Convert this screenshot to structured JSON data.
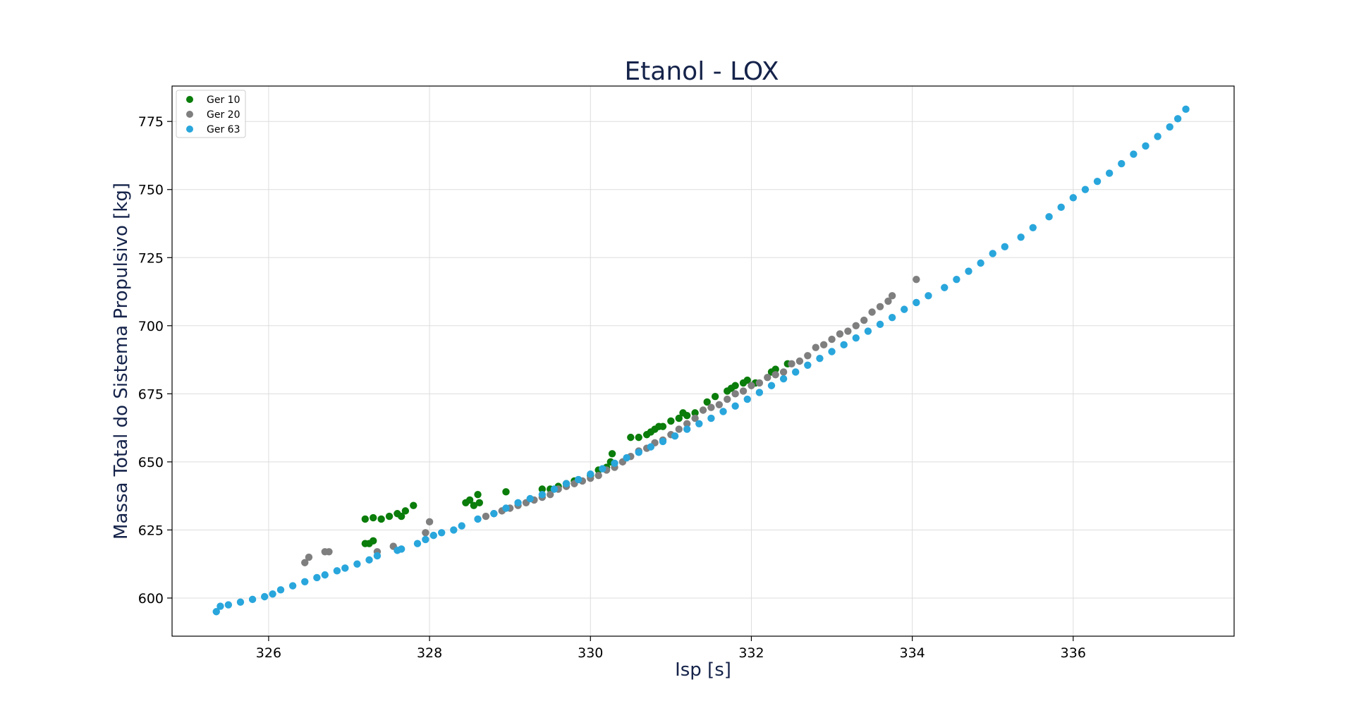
{
  "chart_data": {
    "type": "scatter",
    "title": "Etanol - LOX",
    "xlabel": "Isp [s]",
    "ylabel": "Massa Total do Sistema Propulsivo [kg]",
    "xlim": [
      324.8,
      338.0
    ],
    "ylim": [
      586,
      788
    ],
    "xticks": [
      326,
      328,
      330,
      332,
      334,
      336
    ],
    "yticks": [
      600,
      625,
      650,
      675,
      700,
      725,
      750,
      775
    ],
    "grid": true,
    "legend_position": "top-left",
    "series": [
      {
        "name": "Ger 10",
        "color": "#0a7d0a",
        "points": [
          [
            327.2,
            629.0
          ],
          [
            327.2,
            620.0
          ],
          [
            327.25,
            620.0
          ],
          [
            327.3,
            621.0
          ],
          [
            327.3,
            629.5
          ],
          [
            327.4,
            629.0
          ],
          [
            327.5,
            630.0
          ],
          [
            327.6,
            631.0
          ],
          [
            327.65,
            630.0
          ],
          [
            327.7,
            632.0
          ],
          [
            327.8,
            634.0
          ],
          [
            328.45,
            635.0
          ],
          [
            328.5,
            636.0
          ],
          [
            328.55,
            634.0
          ],
          [
            328.6,
            638.0
          ],
          [
            328.62,
            635.0
          ],
          [
            328.95,
            639.0
          ],
          [
            329.4,
            640.0
          ],
          [
            329.5,
            640.0
          ],
          [
            329.6,
            641.0
          ],
          [
            329.7,
            642.0
          ],
          [
            329.8,
            643.0
          ],
          [
            330.0,
            645.0
          ],
          [
            330.1,
            647.0
          ],
          [
            330.2,
            648.0
          ],
          [
            330.25,
            650.0
          ],
          [
            330.27,
            653.0
          ],
          [
            330.5,
            659.0
          ],
          [
            330.6,
            659.0
          ],
          [
            330.7,
            660.0
          ],
          [
            330.75,
            661.0
          ],
          [
            330.8,
            662.0
          ],
          [
            330.85,
            663.0
          ],
          [
            330.9,
            663.0
          ],
          [
            331.0,
            665.0
          ],
          [
            331.1,
            666.0
          ],
          [
            331.15,
            668.0
          ],
          [
            331.2,
            667.0
          ],
          [
            331.3,
            668.0
          ],
          [
            331.45,
            672.0
          ],
          [
            331.55,
            674.0
          ],
          [
            331.7,
            676.0
          ],
          [
            331.75,
            677.0
          ],
          [
            331.8,
            678.0
          ],
          [
            331.9,
            679.0
          ],
          [
            331.95,
            680.0
          ],
          [
            332.05,
            679.0
          ],
          [
            332.25,
            683.0
          ],
          [
            332.3,
            684.0
          ],
          [
            332.45,
            686.0
          ]
        ]
      },
      {
        "name": "Ger 20",
        "color": "#7f7f7f",
        "points": [
          [
            326.45,
            613.0
          ],
          [
            326.5,
            615.0
          ],
          [
            326.7,
            617.0
          ],
          [
            326.75,
            617.0
          ],
          [
            327.35,
            617.0
          ],
          [
            327.55,
            619.0
          ],
          [
            327.95,
            624.0
          ],
          [
            328.0,
            628.0
          ],
          [
            328.7,
            630.0
          ],
          [
            328.8,
            631.0
          ],
          [
            328.9,
            632.0
          ],
          [
            329.0,
            633.0
          ],
          [
            329.1,
            634.0
          ],
          [
            329.2,
            635.0
          ],
          [
            329.3,
            636.0
          ],
          [
            329.4,
            637.0
          ],
          [
            329.5,
            638.0
          ],
          [
            329.6,
            640.0
          ],
          [
            329.7,
            641.0
          ],
          [
            329.8,
            642.0
          ],
          [
            329.9,
            643.0
          ],
          [
            330.0,
            644.0
          ],
          [
            330.1,
            645.0
          ],
          [
            330.2,
            647.0
          ],
          [
            330.3,
            648.0
          ],
          [
            330.4,
            650.0
          ],
          [
            330.5,
            652.0
          ],
          [
            330.6,
            654.0
          ],
          [
            330.7,
            655.0
          ],
          [
            330.8,
            657.0
          ],
          [
            330.9,
            658.0
          ],
          [
            331.0,
            660.0
          ],
          [
            331.1,
            662.0
          ],
          [
            331.2,
            664.0
          ],
          [
            331.3,
            666.0
          ],
          [
            331.4,
            669.0
          ],
          [
            331.5,
            670.0
          ],
          [
            331.6,
            671.0
          ],
          [
            331.7,
            673.0
          ],
          [
            331.8,
            675.0
          ],
          [
            331.9,
            676.0
          ],
          [
            332.0,
            678.0
          ],
          [
            332.1,
            679.0
          ],
          [
            332.2,
            681.0
          ],
          [
            332.3,
            682.0
          ],
          [
            332.4,
            683.0
          ],
          [
            332.5,
            686.0
          ],
          [
            332.6,
            687.0
          ],
          [
            332.7,
            689.0
          ],
          [
            332.8,
            692.0
          ],
          [
            332.9,
            693.0
          ],
          [
            333.0,
            695.0
          ],
          [
            333.1,
            697.0
          ],
          [
            333.2,
            698.0
          ],
          [
            333.3,
            700.0
          ],
          [
            333.4,
            702.0
          ],
          [
            333.5,
            705.0
          ],
          [
            333.6,
            707.0
          ],
          [
            333.7,
            709.0
          ],
          [
            333.75,
            711.0
          ],
          [
            334.05,
            717.0
          ]
        ]
      },
      {
        "name": "Ger 63",
        "color": "#29a6dc",
        "points": [
          [
            325.35,
            595.0
          ],
          [
            325.4,
            597.0
          ],
          [
            325.5,
            597.5
          ],
          [
            325.65,
            598.5
          ],
          [
            325.8,
            599.5
          ],
          [
            325.95,
            600.5
          ],
          [
            326.05,
            601.5
          ],
          [
            326.15,
            603.0
          ],
          [
            326.3,
            604.5
          ],
          [
            326.45,
            606.0
          ],
          [
            326.6,
            607.5
          ],
          [
            326.7,
            608.5
          ],
          [
            326.85,
            610.0
          ],
          [
            326.95,
            611.0
          ],
          [
            327.1,
            612.5
          ],
          [
            327.25,
            614.0
          ],
          [
            327.35,
            615.5
          ],
          [
            327.6,
            617.5
          ],
          [
            327.65,
            618.0
          ],
          [
            327.85,
            620.0
          ],
          [
            327.95,
            621.5
          ],
          [
            328.05,
            623.0
          ],
          [
            328.15,
            624.0
          ],
          [
            328.3,
            625.0
          ],
          [
            328.4,
            626.5
          ],
          [
            328.6,
            629.0
          ],
          [
            328.8,
            631.0
          ],
          [
            328.95,
            633.0
          ],
          [
            329.1,
            635.0
          ],
          [
            329.25,
            636.5
          ],
          [
            329.4,
            638.0
          ],
          [
            329.55,
            640.0
          ],
          [
            329.7,
            642.0
          ],
          [
            329.85,
            643.5
          ],
          [
            330.0,
            645.5
          ],
          [
            330.15,
            647.5
          ],
          [
            330.3,
            649.5
          ],
          [
            330.45,
            651.5
          ],
          [
            330.6,
            653.5
          ],
          [
            330.75,
            655.5
          ],
          [
            330.9,
            657.5
          ],
          [
            331.05,
            659.5
          ],
          [
            331.2,
            662.0
          ],
          [
            331.35,
            664.0
          ],
          [
            331.5,
            666.0
          ],
          [
            331.65,
            668.5
          ],
          [
            331.8,
            670.5
          ],
          [
            331.95,
            673.0
          ],
          [
            332.1,
            675.5
          ],
          [
            332.25,
            678.0
          ],
          [
            332.4,
            680.5
          ],
          [
            332.55,
            683.0
          ],
          [
            332.7,
            685.5
          ],
          [
            332.85,
            688.0
          ],
          [
            333.0,
            690.5
          ],
          [
            333.15,
            693.0
          ],
          [
            333.3,
            695.5
          ],
          [
            333.45,
            698.0
          ],
          [
            333.6,
            700.5
          ],
          [
            333.75,
            703.0
          ],
          [
            333.9,
            706.0
          ],
          [
            334.05,
            708.5
          ],
          [
            334.2,
            711.0
          ],
          [
            334.4,
            714.0
          ],
          [
            334.55,
            717.0
          ],
          [
            334.7,
            720.0
          ],
          [
            334.85,
            723.0
          ],
          [
            335.0,
            726.5
          ],
          [
            335.15,
            729.0
          ],
          [
            335.35,
            732.5
          ],
          [
            335.5,
            736.0
          ],
          [
            335.7,
            740.0
          ],
          [
            335.85,
            743.5
          ],
          [
            336.0,
            747.0
          ],
          [
            336.15,
            750.0
          ],
          [
            336.3,
            753.0
          ],
          [
            336.45,
            756.0
          ],
          [
            336.6,
            759.5
          ],
          [
            336.75,
            763.0
          ],
          [
            336.9,
            766.0
          ],
          [
            337.05,
            769.5
          ],
          [
            337.2,
            773.0
          ],
          [
            337.3,
            776.0
          ],
          [
            337.4,
            779.5
          ]
        ]
      }
    ]
  }
}
